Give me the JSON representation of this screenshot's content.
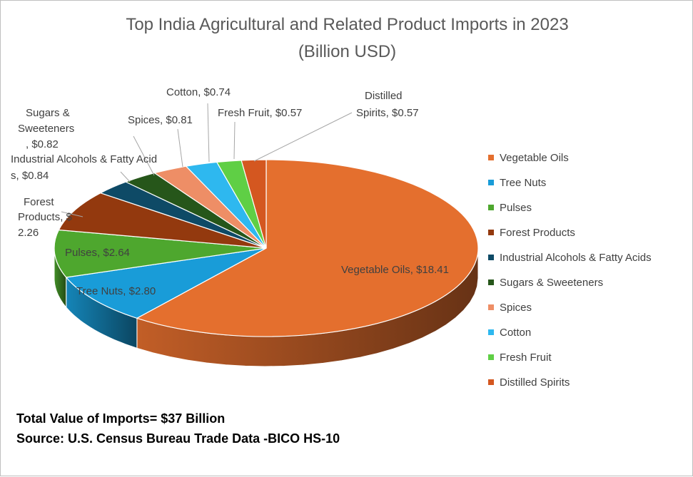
{
  "chart_data": {
    "type": "pie",
    "title": "Top India Agricultural and Related Product Imports in 2023",
    "subtitle": "(Billion USD)",
    "legend_position": "right",
    "slices": [
      {
        "name": "Vegetable Oils",
        "value": 18.41,
        "label": "Vegetable Oils, $18.41",
        "color": "#E46F2E"
      },
      {
        "name": "Tree Nuts",
        "value": 2.8,
        "label": "Tree Nuts, $2.80",
        "color": "#199CD8"
      },
      {
        "name": "Pulses",
        "value": 2.64,
        "label": "Pulses, $2.64",
        "color": "#4EA72E"
      },
      {
        "name": "Forest Products",
        "value": 2.26,
        "label": "Forest Products, $2.26",
        "color": "#93390E"
      },
      {
        "name": "Industrial Alcohols & Fatty Acids",
        "value": 0.84,
        "label": "Industrial Alcohols & Fatty Acids, $0.84",
        "color": "#0E4A66"
      },
      {
        "name": "Sugars & Sweeteners",
        "value": 0.82,
        "label": "Sugars & Sweeteners, $0.82",
        "color": "#26561A"
      },
      {
        "name": "Spices",
        "value": 0.81,
        "label": "Spices, $0.81",
        "color": "#EE8E66"
      },
      {
        "name": "Cotton",
        "value": 0.74,
        "label": "Cotton, $0.74",
        "color": "#2EB8EF"
      },
      {
        "name": "Fresh Fruit",
        "value": 0.57,
        "label": "Fresh Fruit, $0.57",
        "color": "#5FCF45"
      },
      {
        "name": "Distilled Spirits",
        "value": 0.57,
        "label": "Distilled Spirits, $0.57",
        "color": "#D45720"
      }
    ]
  },
  "footer": {
    "total": "Total Value of Imports= $37 Billion",
    "source": "Source: U.S. Census Bureau Trade Data -BICO HS-10"
  }
}
